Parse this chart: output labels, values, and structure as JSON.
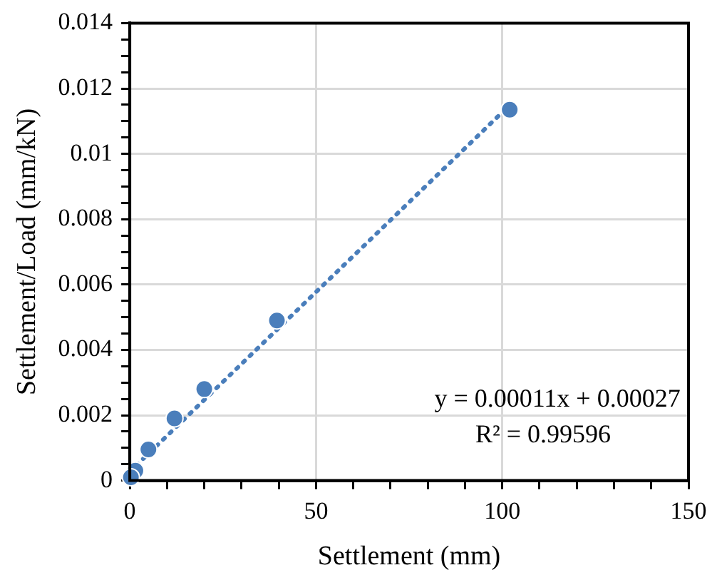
{
  "chart_data": {
    "type": "scatter",
    "xlabel": "Settlement (mm)",
    "ylabel": "Settlement/Load (mm/kN)",
    "x": [
      102,
      39.5,
      20,
      12,
      5,
      1.5,
      0.3
    ],
    "series": [
      {
        "color": "#4a7ebb",
        "marker": "circle",
        "values": [
          0.01135,
          0.0049,
          0.0028,
          0.0019,
          0.00095,
          0.0003,
          0.0001
        ]
      },
      {
        "type": "line",
        "color": "#4a7ebb",
        "marker": "none",
        "line_style": "dotted",
        "x": [
          0,
          102
        ],
        "values": [
          0.00027,
          0.01149
        ]
      }
    ],
    "xlim": [
      0,
      150
    ],
    "xticks": [
      0,
      {
        "value": 10,
        "label": null
      },
      {
        "value": 20,
        "label": null
      },
      {
        "value": 30,
        "label": null
      },
      {
        "value": 40,
        "label": null
      },
      50,
      {
        "value": 60,
        "label": null
      },
      {
        "value": 70,
        "label": null
      },
      {
        "value": 80,
        "label": null
      },
      {
        "value": 90,
        "label": null
      },
      100,
      {
        "value": 110,
        "label": null
      },
      {
        "value": 120,
        "label": null
      },
      {
        "value": 130,
        "label": null
      },
      {
        "value": 140,
        "label": null
      },
      150
    ],
    "ylim": [
      0,
      0.014
    ],
    "yticks": [
      0,
      {
        "value": 0.0005,
        "label": null
      },
      {
        "value": 0.001,
        "label": null
      },
      {
        "value": 0.0015,
        "label": null
      },
      0.002,
      {
        "value": 0.0025,
        "label": null
      },
      {
        "value": 0.003,
        "label": null
      },
      {
        "value": 0.0035,
        "label": null
      },
      0.004,
      {
        "value": 0.0045,
        "label": null
      },
      {
        "value": 0.005,
        "label": null
      },
      {
        "value": 0.0055,
        "label": null
      },
      0.006,
      {
        "value": 0.0065,
        "label": null
      },
      {
        "value": 0.007,
        "label": null
      },
      {
        "value": 0.0075,
        "label": null
      },
      0.008,
      {
        "value": 0.0085,
        "label": null
      },
      {
        "value": 0.009,
        "label": null
      },
      {
        "value": 0.0095,
        "label": null
      },
      0.01,
      {
        "value": 0.0105,
        "label": null
      },
      {
        "value": 0.011,
        "label": null
      },
      {
        "value": 0.0115,
        "label": null
      },
      0.012,
      {
        "value": 0.0125,
        "label": null
      },
      {
        "value": 0.013,
        "label": null
      },
      {
        "value": 0.0135,
        "label": null
      },
      0.014
    ],
    "grid": true,
    "legend": false,
    "annotations": [
      "y = 0.00011x + 0.00027",
      "R² = 0.99596"
    ]
  }
}
